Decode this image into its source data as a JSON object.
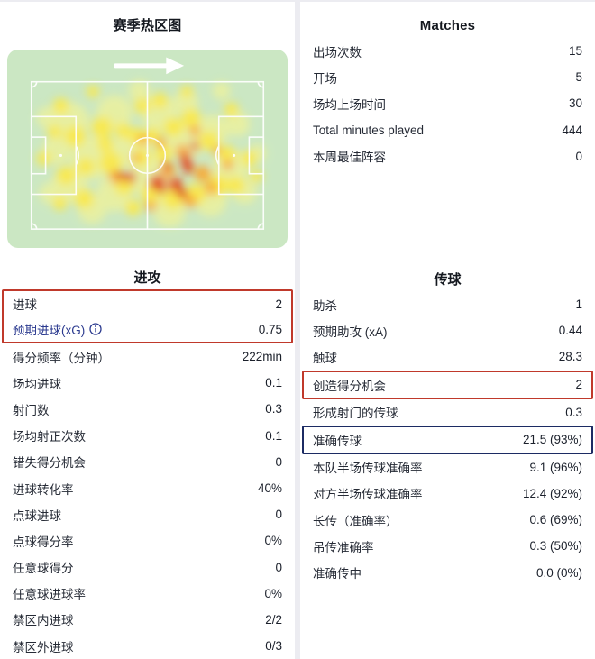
{
  "season_heatmap": {
    "title": "赛季热区图",
    "direction_icon": "arrow-right-icon",
    "colors": {
      "card": "#cbe7c3",
      "pitch_line": "#ffffff",
      "low": "#e9f0a0",
      "mid": "#fce94a",
      "high": "#fba42c",
      "max": "#e23a10"
    },
    "heat_points": [
      [
        70,
        80,
        22,
        "low"
      ],
      [
        95,
        120,
        24,
        "low"
      ],
      [
        70,
        150,
        20,
        "low"
      ],
      [
        120,
        70,
        20,
        "low"
      ],
      [
        140,
        110,
        22,
        "low"
      ],
      [
        120,
        160,
        20,
        "low"
      ],
      [
        95,
        178,
        16,
        "low"
      ],
      [
        170,
        70,
        20,
        "low"
      ],
      [
        200,
        100,
        22,
        "low"
      ],
      [
        230,
        90,
        18,
        "low"
      ],
      [
        250,
        130,
        20,
        "low"
      ],
      [
        228,
        168,
        18,
        "low"
      ],
      [
        182,
        180,
        18,
        "low"
      ],
      [
        160,
        140,
        24,
        "low"
      ],
      [
        258,
        82,
        14,
        "low"
      ],
      [
        55,
        112,
        16,
        "low"
      ],
      [
        200,
        58,
        14,
        "low"
      ],
      [
        266,
        158,
        14,
        "low"
      ],
      [
        45,
        75,
        12,
        "low"
      ],
      [
        48,
        160,
        12,
        "low"
      ],
      [
        148,
        45,
        12,
        "low"
      ],
      [
        240,
        45,
        10,
        "low"
      ],
      [
        280,
        115,
        10,
        "low"
      ],
      [
        60,
        62,
        9,
        "mid"
      ],
      [
        76,
        96,
        12,
        "mid"
      ],
      [
        66,
        140,
        11,
        "mid"
      ],
      [
        86,
        166,
        11,
        "mid"
      ],
      [
        106,
        86,
        12,
        "mid"
      ],
      [
        116,
        126,
        13,
        "mid"
      ],
      [
        131,
        151,
        11,
        "mid"
      ],
      [
        146,
        96,
        10,
        "mid"
      ],
      [
        151,
        62,
        9,
        "mid"
      ],
      [
        171,
        56,
        9,
        "mid"
      ],
      [
        186,
        86,
        11,
        "mid"
      ],
      [
        206,
        76,
        11,
        "mid"
      ],
      [
        226,
        101,
        11,
        "mid"
      ],
      [
        246,
        116,
        10,
        "mid"
      ],
      [
        256,
        151,
        10,
        "mid"
      ],
      [
        236,
        151,
        12,
        "mid"
      ],
      [
        211,
        161,
        12,
        "mid"
      ],
      [
        186,
        166,
        12,
        "mid"
      ],
      [
        161,
        161,
        11,
        "mid"
      ],
      [
        141,
        176,
        9,
        "mid"
      ],
      [
        251,
        66,
        8,
        "mid"
      ],
      [
        271,
        121,
        9,
        "mid"
      ],
      [
        53,
        91,
        8,
        "mid"
      ],
      [
        59,
        171,
        8,
        "mid"
      ],
      [
        96,
        46,
        7,
        "mid"
      ],
      [
        201,
        46,
        7,
        "mid"
      ],
      [
        279,
        141,
        7,
        "mid"
      ],
      [
        41,
        121,
        8,
        "mid"
      ],
      [
        150,
        120,
        10,
        "mid"
      ],
      [
        175,
        115,
        10,
        "mid"
      ],
      [
        163,
        95,
        9,
        "mid"
      ],
      [
        110,
        105,
        9,
        "mid"
      ],
      [
        88,
        130,
        10,
        "mid"
      ],
      [
        130,
        90,
        9,
        "mid"
      ],
      [
        196,
        112,
        7,
        "high"
      ],
      [
        219,
        138,
        9,
        "high"
      ],
      [
        228,
        154,
        7,
        "high"
      ],
      [
        152,
        100,
        6,
        "high"
      ],
      [
        172,
        103,
        6,
        "high"
      ],
      [
        247,
        128,
        6,
        "high"
      ],
      [
        210,
        90,
        6,
        "high"
      ],
      [
        121,
        141,
        7,
        "high"
      ],
      [
        180,
        134,
        8,
        "high"
      ],
      [
        205,
        169,
        7,
        "high"
      ],
      [
        161,
        174,
        6,
        "high"
      ],
      [
        144,
        120,
        5,
        "high"
      ],
      [
        235,
        112,
        5,
        "high"
      ],
      [
        200,
        122,
        7,
        "max"
      ],
      [
        203,
        132,
        6,
        "max"
      ],
      [
        168,
        148,
        9,
        "max"
      ],
      [
        188,
        150,
        8,
        "max"
      ],
      [
        196,
        160,
        6,
        "max"
      ],
      [
        138,
        142,
        6,
        "max"
      ],
      [
        127,
        141,
        5,
        "max"
      ],
      [
        210,
        107,
        5,
        "max"
      ],
      [
        178,
        129,
        5,
        "max"
      ],
      [
        173,
        155,
        5,
        "max"
      ]
    ]
  },
  "matches": {
    "title": "Matches",
    "rows": [
      {
        "label": "出场次数",
        "value": "15"
      },
      {
        "label": "开场",
        "value": "5"
      },
      {
        "label": "场均上场时间",
        "value": "30"
      },
      {
        "label": "Total minutes played",
        "value": "444"
      },
      {
        "label": "本周最佳阵容",
        "value": "0"
      }
    ]
  },
  "attack": {
    "title": "进攻",
    "highlight_box": {
      "goals": {
        "label": "进球",
        "value": "2"
      },
      "xg": {
        "label": "预期进球(xG)",
        "value": "0.75",
        "info_icon": "info-icon"
      }
    },
    "rows": [
      {
        "label": "得分频率（分钟）",
        "value": "222min"
      },
      {
        "label": "场均进球",
        "value": "0.1"
      },
      {
        "label": "射门数",
        "value": "0.3"
      },
      {
        "label": "场均射正次数",
        "value": "0.1"
      },
      {
        "label": "错失得分机会",
        "value": "0"
      },
      {
        "label": "进球转化率",
        "value": "40%"
      },
      {
        "label": "点球进球",
        "value": "0"
      },
      {
        "label": "点球得分率",
        "value": "0%"
      },
      {
        "label": "任意球得分",
        "value": "0"
      },
      {
        "label": "任意球进球率",
        "value": "0%"
      },
      {
        "label": "禁区内进球",
        "value": "2/2"
      },
      {
        "label": "禁区外进球",
        "value": "0/3"
      }
    ]
  },
  "passing": {
    "title": "传球",
    "rows_top": [
      {
        "label": "助杀",
        "value": "1"
      },
      {
        "label": "预期助攻 (xA)",
        "value": "0.44"
      },
      {
        "label": "触球",
        "value": "28.3"
      }
    ],
    "red_box_row": {
      "label": "创造得分机会",
      "value": "2"
    },
    "rows_mid": [
      {
        "label": "形成射门的传球",
        "value": "0.3"
      }
    ],
    "blue_box_row": {
      "label": "准确传球",
      "value": "21.5 (93%)"
    },
    "rows_bottom": [
      {
        "label": "本队半场传球准确率",
        "value": "9.1 (96%)"
      },
      {
        "label": "对方半场传球准确率",
        "value": "12.4 (92%)"
      },
      {
        "label": "长传（准确率）",
        "value": "0.6 (69%)"
      },
      {
        "label": "吊传准确率",
        "value": "0.3 (50%)"
      },
      {
        "label": "准确传中",
        "value": "0.0 (0%)"
      }
    ]
  },
  "colors": {
    "highlight_red": "#c0392b",
    "highlight_navy": "#1c2b63",
    "xg_link_blue": "#2b3a8f",
    "divider": "#ececf1"
  }
}
